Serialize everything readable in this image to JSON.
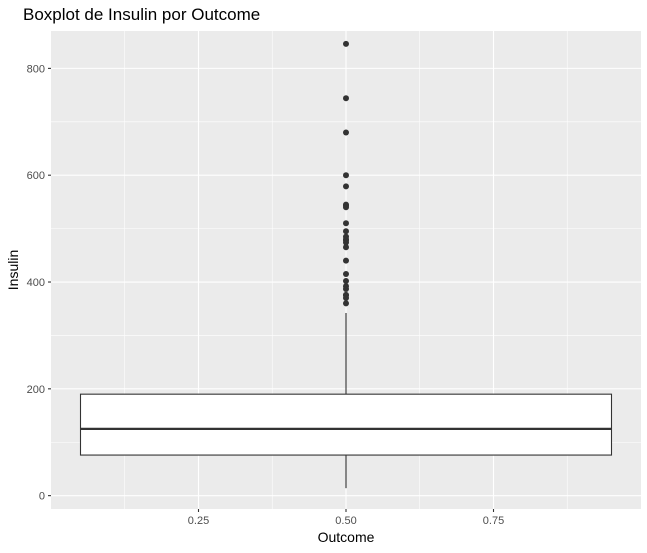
{
  "chart_data": {
    "type": "boxplot",
    "title": "Boxplot de Insulin por Outcome",
    "xlabel": "Outcome",
    "ylabel": "Insulin",
    "xlim": [
      0.0,
      1.0
    ],
    "ylim": [
      -25,
      870
    ],
    "x_ticks": [
      0.25,
      0.5,
      0.75
    ],
    "x_tick_labels": [
      "0.25",
      "0.50",
      "0.75"
    ],
    "y_ticks": [
      0,
      200,
      400,
      600,
      800
    ],
    "y_tick_labels": [
      "0",
      "200",
      "400",
      "600",
      "800"
    ],
    "grid": true,
    "colors": {
      "panel_background": "#ebebeb",
      "grid_line": "#ffffff",
      "box_fill": "#ffffff",
      "box_stroke": "#333333",
      "outlier": "#333333"
    },
    "box": {
      "x": 0.5,
      "x_min": 0.05,
      "x_max": 0.95,
      "q1": 76,
      "median": 125,
      "q3": 190,
      "whisker_low": 14,
      "whisker_high": 342
    },
    "outliers": [
      846,
      744,
      680,
      600,
      579,
      545,
      543,
      540,
      510,
      495,
      485,
      480,
      478,
      474,
      465,
      440,
      415,
      402,
      392,
      387,
      376,
      375,
      370,
      360
    ]
  }
}
